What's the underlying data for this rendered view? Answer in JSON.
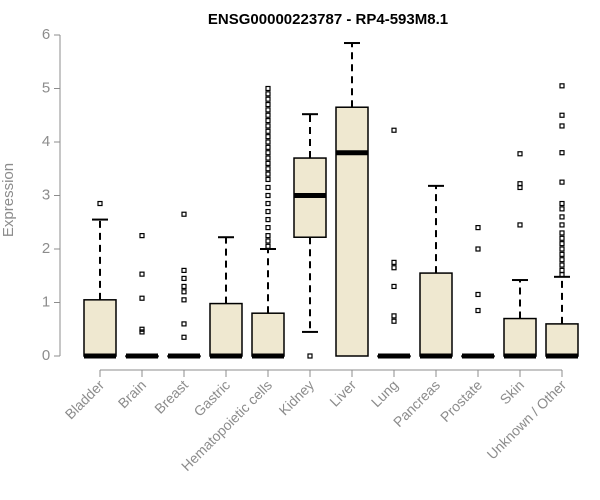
{
  "chart_data": {
    "type": "boxplot",
    "title": "ENSG00000223787 - RP4-593M8.1",
    "xlabel": "",
    "ylabel": "Expression",
    "ylim": [
      0,
      6
    ],
    "yticks": [
      0,
      1,
      2,
      3,
      4,
      5,
      6
    ],
    "grid": false,
    "legend": "none",
    "box_fill": "#efe8d0",
    "categories": [
      "Bladder",
      "Brain",
      "Breast",
      "Gastric",
      "Hematopoietic cells",
      "Kidney",
      "Liver",
      "Lung",
      "Pancreas",
      "Prostate",
      "Skin",
      "Unknown / Other"
    ],
    "boxes": [
      {
        "category": "Bladder",
        "min": 0,
        "q1": 0,
        "median": 0,
        "q3": 1.05,
        "max": 2.55,
        "outliers": [
          2.85
        ]
      },
      {
        "category": "Brain",
        "min": 0,
        "q1": 0,
        "median": 0,
        "q3": 0,
        "max": 0,
        "outliers": [
          0.45,
          0.5,
          1.08,
          1.53,
          2.25
        ]
      },
      {
        "category": "Breast",
        "min": 0,
        "q1": 0,
        "median": 0,
        "q3": 0,
        "max": 0,
        "outliers": [
          0.35,
          0.6,
          1.05,
          1.2,
          1.3,
          1.45,
          1.6,
          2.65
        ]
      },
      {
        "category": "Gastric",
        "min": 0,
        "q1": 0,
        "median": 0,
        "q3": 0.98,
        "max": 2.22,
        "outliers": []
      },
      {
        "category": "Hematopoietic cells",
        "min": 0,
        "q1": 0,
        "median": 0,
        "q3": 0.8,
        "max": 2.0,
        "outliers": [
          2.05,
          2.15,
          2.25,
          2.4,
          2.55,
          2.7,
          2.85,
          3.0,
          3.15,
          3.3,
          3.4,
          3.5,
          3.6,
          3.7,
          3.8,
          3.9,
          4.0,
          4.1,
          4.2,
          4.3,
          4.4,
          4.5,
          4.6,
          4.7,
          4.8,
          4.9,
          5.0
        ]
      },
      {
        "category": "Kidney",
        "min": 0.45,
        "q1": 2.22,
        "median": 3.0,
        "q3": 3.7,
        "max": 4.52,
        "outliers": [
          0.0
        ]
      },
      {
        "category": "Liver",
        "min": 0,
        "q1": 0,
        "median": 3.8,
        "q3": 4.65,
        "max": 5.85,
        "outliers": []
      },
      {
        "category": "Lung",
        "min": 0,
        "q1": 0,
        "median": 0,
        "q3": 0,
        "max": 0,
        "outliers": [
          0.65,
          0.75,
          1.3,
          1.65,
          1.75,
          4.22
        ]
      },
      {
        "category": "Pancreas",
        "min": 0,
        "q1": 0,
        "median": 0,
        "q3": 1.55,
        "max": 3.18,
        "outliers": []
      },
      {
        "category": "Prostate",
        "min": 0,
        "q1": 0,
        "median": 0,
        "q3": 0,
        "max": 0,
        "outliers": [
          0.85,
          1.15,
          2.0,
          2.4
        ]
      },
      {
        "category": "Skin",
        "min": 0,
        "q1": 0,
        "median": 0,
        "q3": 0.7,
        "max": 1.42,
        "outliers": [
          2.45,
          3.15,
          3.22,
          3.78
        ]
      },
      {
        "category": "Unknown / Other",
        "min": 0,
        "q1": 0,
        "median": 0,
        "q3": 0.6,
        "max": 1.48,
        "outliers": [
          1.52,
          1.6,
          1.7,
          1.8,
          1.9,
          2.0,
          2.1,
          2.2,
          2.3,
          2.45,
          2.6,
          2.75,
          2.85,
          3.25,
          3.8,
          4.3,
          4.5,
          5.05
        ]
      }
    ]
  }
}
